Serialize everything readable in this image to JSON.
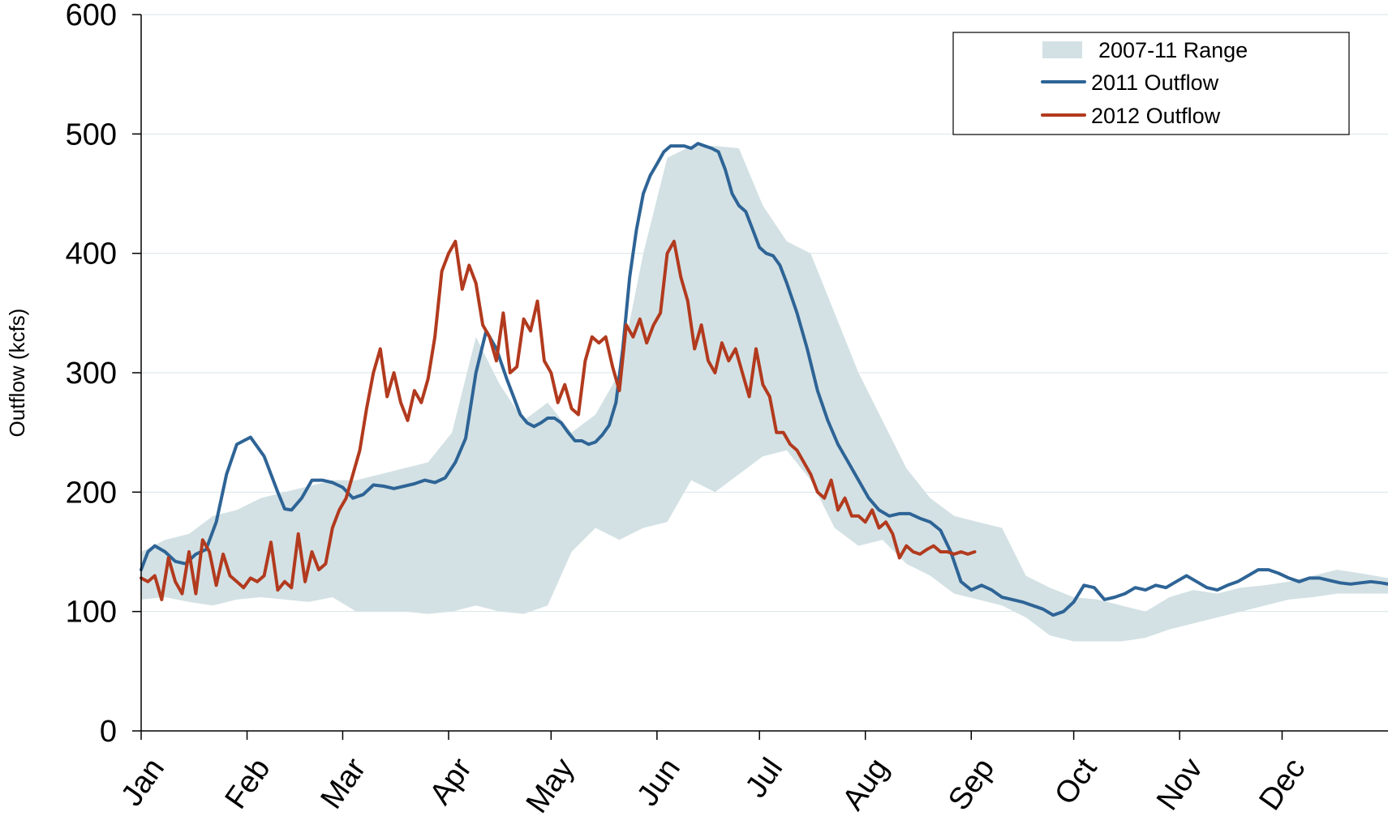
{
  "chart_data": {
    "type": "line",
    "title": "",
    "xlabel": "",
    "ylabel": "Outflow (kcfs)",
    "ylim": [
      0,
      600
    ],
    "yticks": [
      0,
      100,
      200,
      300,
      400,
      500,
      600
    ],
    "categories": [
      "Jan",
      "Feb",
      "Mar",
      "Apr",
      "May",
      "Jun",
      "Jul",
      "Aug",
      "Sep",
      "Oct",
      "Nov",
      "Dec"
    ],
    "x_unit": "day of year",
    "xlim": [
      1,
      366
    ],
    "grid": true,
    "legend_position": "top-right",
    "colors": {
      "range": "#d3e1e4",
      "s2011": "#2e6496",
      "s2012": "#b23a1e"
    },
    "range_band": {
      "name": "2007-11 Range",
      "x": [
        1,
        8,
        15,
        22,
        29,
        36,
        43,
        50,
        57,
        64,
        71,
        78,
        85,
        92,
        99,
        106,
        113,
        120,
        127,
        134,
        141,
        148,
        155,
        162,
        169,
        176,
        183,
        190,
        197,
        204,
        211,
        218,
        225,
        232,
        239,
        246,
        253,
        260,
        267,
        274,
        281,
        288,
        295,
        302,
        309,
        316,
        323,
        330,
        337,
        344,
        351,
        358,
        366
      ],
      "low": [
        110,
        112,
        108,
        105,
        110,
        112,
        110,
        108,
        112,
        100,
        100,
        100,
        98,
        100,
        105,
        100,
        98,
        105,
        150,
        170,
        160,
        170,
        175,
        210,
        200,
        215,
        230,
        235,
        210,
        170,
        155,
        160,
        140,
        130,
        115,
        110,
        105,
        95,
        80,
        75,
        75,
        75,
        78,
        85,
        90,
        95,
        100,
        105,
        110,
        112,
        115,
        115,
        115
      ],
      "high": [
        150,
        160,
        165,
        180,
        185,
        195,
        200,
        205,
        210,
        210,
        215,
        220,
        225,
        250,
        330,
        290,
        260,
        275,
        250,
        265,
        300,
        400,
        480,
        490,
        490,
        488,
        440,
        410,
        400,
        350,
        300,
        260,
        220,
        195,
        180,
        175,
        170,
        130,
        120,
        112,
        110,
        105,
        100,
        112,
        118,
        115,
        120,
        122,
        125,
        130,
        135,
        132,
        128
      ]
    },
    "series": [
      {
        "name": "2011 Outflow",
        "x": [
          1,
          3,
          5,
          8,
          11,
          14,
          17,
          20,
          23,
          26,
          29,
          31,
          33,
          35,
          37,
          39,
          41,
          43,
          45,
          48,
          51,
          54,
          57,
          60,
          63,
          66,
          69,
          72,
          75,
          78,
          81,
          84,
          87,
          90,
          93,
          96,
          99,
          102,
          105,
          108,
          110,
          112,
          114,
          116,
          118,
          120,
          122,
          124,
          126,
          128,
          130,
          132,
          134,
          136,
          138,
          140,
          142,
          144,
          146,
          148,
          150,
          152,
          154,
          156,
          158,
          160,
          162,
          164,
          166,
          168,
          170,
          172,
          174,
          176,
          178,
          180,
          182,
          184,
          186,
          188,
          190,
          193,
          196,
          199,
          202,
          205,
          208,
          211,
          214,
          217,
          220,
          223,
          226,
          229,
          232,
          235,
          238,
          241,
          244,
          247,
          250,
          253,
          256,
          259,
          262,
          265,
          268,
          271,
          274,
          277,
          280,
          283,
          286,
          289,
          292,
          295,
          298,
          301,
          304,
          307,
          310,
          313,
          316,
          319,
          322,
          325,
          328,
          331,
          334,
          337,
          340,
          343,
          346,
          349,
          352,
          355,
          358,
          361,
          364,
          366
        ],
        "y": [
          135,
          150,
          155,
          150,
          142,
          140,
          148,
          152,
          175,
          215,
          240,
          243,
          246,
          238,
          230,
          215,
          200,
          186,
          185,
          195,
          210,
          210,
          208,
          204,
          195,
          198,
          206,
          205,
          203,
          205,
          207,
          210,
          208,
          212,
          225,
          245,
          300,
          335,
          320,
          295,
          280,
          265,
          258,
          255,
          258,
          262,
          262,
          258,
          250,
          243,
          243,
          240,
          242,
          248,
          256,
          275,
          320,
          380,
          420,
          450,
          465,
          475,
          485,
          490,
          490,
          490,
          488,
          492,
          490,
          488,
          485,
          470,
          450,
          440,
          435,
          420,
          405,
          400,
          398,
          390,
          375,
          350,
          320,
          285,
          260,
          240,
          225,
          210,
          195,
          185,
          180,
          182,
          182,
          178,
          175,
          168,
          150,
          125,
          118,
          122,
          118,
          112,
          110,
          108,
          105,
          102,
          97,
          100,
          108,
          122,
          120,
          110,
          112,
          115,
          120,
          118,
          122,
          120,
          125,
          130,
          125,
          120,
          118,
          122,
          125,
          130,
          135,
          135,
          132,
          128,
          125,
          128,
          128,
          126,
          124,
          123,
          124,
          125,
          124,
          123
        ],
        "color": "#2e6496"
      },
      {
        "name": "2012 Outflow",
        "x": [
          1,
          3,
          5,
          7,
          9,
          11,
          13,
          15,
          17,
          19,
          21,
          23,
          25,
          27,
          29,
          31,
          33,
          35,
          37,
          39,
          41,
          43,
          45,
          47,
          49,
          51,
          53,
          55,
          57,
          59,
          61,
          63,
          65,
          67,
          69,
          71,
          73,
          75,
          77,
          79,
          81,
          83,
          85,
          87,
          89,
          91,
          93,
          95,
          97,
          99,
          101,
          103,
          105,
          107,
          109,
          111,
          113,
          115,
          117,
          119,
          121,
          123,
          125,
          127,
          129,
          131,
          133,
          135,
          137,
          139,
          141,
          143,
          145,
          147,
          149,
          151,
          153,
          155,
          157,
          159,
          161,
          163,
          165,
          167,
          169,
          171,
          173,
          175,
          177,
          179,
          181,
          183,
          185,
          187,
          189,
          191,
          193,
          195,
          197,
          199,
          201,
          203,
          205,
          207,
          209,
          211,
          213,
          215,
          217,
          219,
          221,
          223,
          225,
          227,
          229,
          231,
          233,
          235,
          237,
          239,
          241,
          243,
          245
        ],
        "y": [
          128,
          125,
          130,
          110,
          145,
          125,
          115,
          150,
          115,
          160,
          150,
          122,
          148,
          130,
          125,
          120,
          128,
          125,
          130,
          158,
          118,
          125,
          120,
          165,
          125,
          150,
          135,
          140,
          170,
          185,
          195,
          215,
          235,
          270,
          300,
          320,
          280,
          300,
          275,
          260,
          285,
          275,
          295,
          330,
          385,
          400,
          410,
          370,
          390,
          375,
          340,
          330,
          310,
          350,
          300,
          305,
          345,
          335,
          360,
          310,
          300,
          275,
          290,
          270,
          265,
          310,
          330,
          325,
          330,
          305,
          285,
          340,
          330,
          345,
          325,
          340,
          350,
          400,
          410,
          380,
          360,
          320,
          340,
          310,
          300,
          325,
          310,
          320,
          300,
          280,
          320,
          290,
          280,
          250,
          250,
          240,
          235,
          225,
          215,
          200,
          195,
          210,
          185,
          195,
          180,
          180,
          175,
          185,
          170,
          175,
          165,
          145,
          155,
          150,
          148,
          152,
          155,
          150,
          150,
          148,
          150,
          148,
          150
        ],
        "color": "#b23a1e"
      }
    ],
    "legend": [
      "2007-11 Range",
      "2011 Outflow",
      "2012 Outflow"
    ]
  }
}
